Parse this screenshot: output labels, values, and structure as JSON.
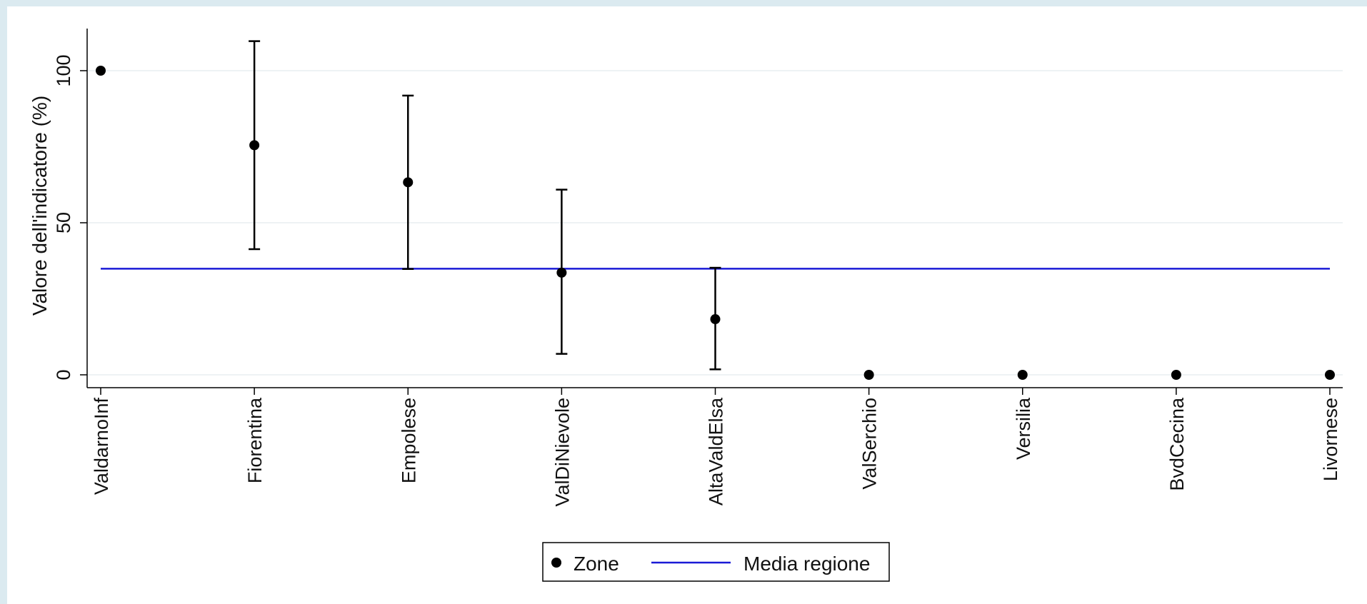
{
  "chart_data": {
    "type": "scatter",
    "title": "",
    "xlabel": "",
    "ylabel": "Valore dell'indicatore (%)",
    "ylim": [
      -4,
      114
    ],
    "yticks": [
      0,
      50,
      100
    ],
    "grid": true,
    "legend_position": "bottom-center",
    "categories": [
      "ValdarnoInf",
      "Fiorentina",
      "Empolese",
      "ValDiNievole",
      "AltaValdElsa",
      "ValSerchio",
      "Versilia",
      "BvdCecina",
      "Livornese"
    ],
    "series": [
      {
        "name": "Zone",
        "values": [
          100,
          75.5,
          63.3,
          33.6,
          18.3,
          0,
          0,
          0,
          0
        ],
        "ci_low": [
          null,
          41.3,
          34.8,
          6.9,
          1.8,
          null,
          null,
          null,
          null
        ],
        "ci_high": [
          null,
          109.7,
          91.8,
          60.9,
          35.2,
          null,
          null,
          null,
          null
        ],
        "color": "#000000"
      },
      {
        "name": "Media regione",
        "type": "hline",
        "value": 34.9,
        "color": "#1a1ad6"
      }
    ]
  }
}
